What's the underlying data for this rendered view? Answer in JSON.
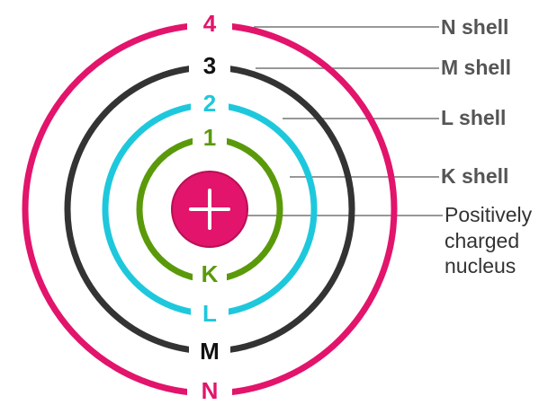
{
  "shells": [
    {
      "number": "1",
      "letter": "K",
      "label": "K shell"
    },
    {
      "number": "2",
      "letter": "L",
      "label": "L shell"
    },
    {
      "number": "3",
      "letter": "M",
      "label": "M shell"
    },
    {
      "number": "4",
      "letter": "N",
      "label": "N shell"
    }
  ],
  "nucleus": {
    "label_lines": [
      "Positively",
      "charged",
      "nucleus"
    ]
  }
}
